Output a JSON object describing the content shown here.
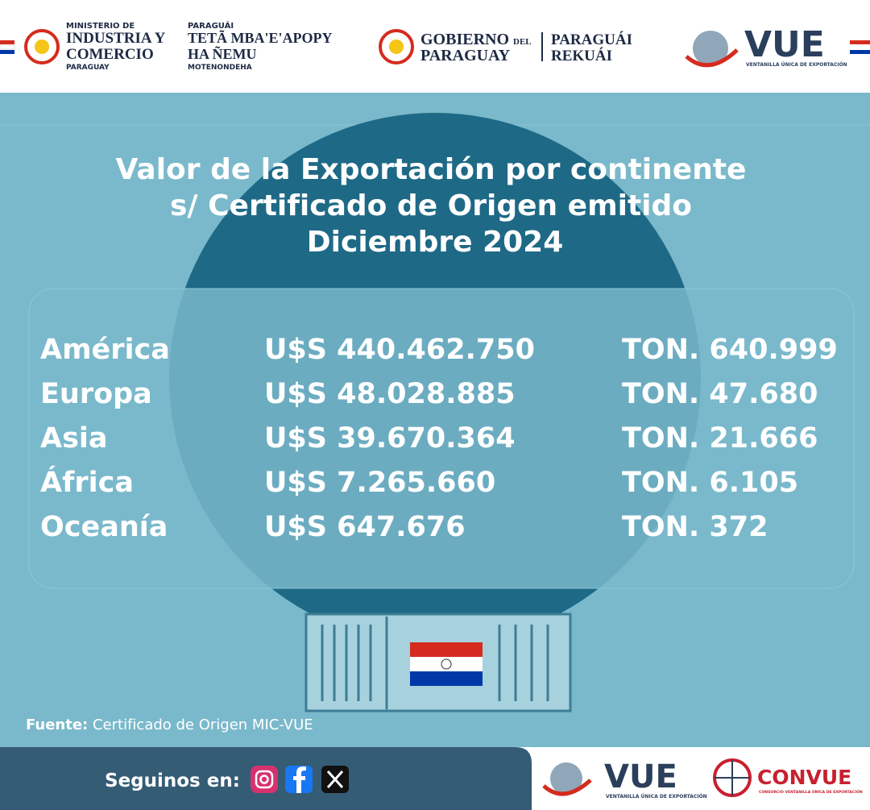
{
  "header": {
    "ministry": {
      "line1": "MINISTERIO DE",
      "line2": "INDUSTRIA Y",
      "line3": "COMERCIO",
      "line4": "PARAGUAY"
    },
    "ministry_gn": {
      "line1": "PARAGUÁI",
      "line2": "TETÃ MBA'E'APOPY",
      "line3": "HA ÑEMU",
      "line4": "MOTENONDEHA"
    },
    "government": {
      "line1": "GOBIERNO",
      "line1_small": "DEL",
      "line2": "PARAGUAY",
      "gn1": "PARAGUÁI",
      "gn2": "REKUÁI"
    },
    "vue": {
      "name": "VUE",
      "subtitle": "VENTANILLA ÚNICA DE EXPORTACIÓN"
    }
  },
  "title": {
    "line1": "Valor de la Exportación por continente",
    "line2": "s/ Certificado de Origen emitido",
    "line3": "Diciembre 2024"
  },
  "table": {
    "rows": [
      [
        "América",
        "U$S 440.462.750",
        "TON. 640.999"
      ],
      [
        "Europa",
        "U$S 48.028.885",
        "TON. 47.680"
      ],
      [
        "Asia",
        "U$S 39.670.364",
        "TON. 21.666"
      ],
      [
        "África",
        "U$S 7.265.660",
        "TON. 6.105"
      ],
      [
        "Oceanía",
        "U$S 647.676",
        "TON. 372"
      ]
    ]
  },
  "source": {
    "label": "Fuente:",
    "text": "Certificado de Origen MIC-VUE"
  },
  "footer": {
    "follow": "Seguinos en:",
    "vue": {
      "name": "VUE",
      "subtitle": "VENTANILLA ÚNICA DE EXPORTACIÓN"
    },
    "convue": {
      "name": "CONVUE",
      "subtitle": "CONSORCIO VENTANILLA ÚNICA DE EXPORTACIÓN"
    }
  }
}
